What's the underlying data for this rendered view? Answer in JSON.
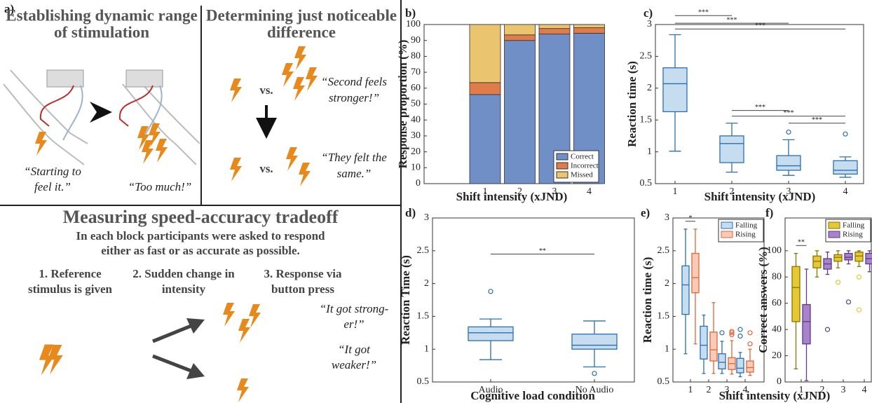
{
  "panel_a": {
    "label": "a)",
    "range_title": [
      "Establishing dynamic range",
      "of stimulation"
    ],
    "range_quotes": [
      [
        "“Starting to",
        "feel it.”"
      ],
      [
        "“Too much!”"
      ]
    ],
    "jnd_title": [
      "Determining just noticeable",
      "difference"
    ],
    "vs": [
      "vs.",
      "vs."
    ],
    "jnd_quotes": [
      [
        "“Second feels",
        "stronger!”"
      ],
      [
        "“They felt the",
        "same.”"
      ]
    ],
    "tradeoff_title": "Measuring speed-accuracy tradeoff",
    "tradeoff_subtitle": [
      "In each block participants were asked to respond",
      "either as fast or as accurate as possible."
    ],
    "steps": [
      [
        "1. Reference",
        "stimulus is given"
      ],
      [
        "2. Sudden change in",
        "intensity"
      ],
      [
        "3. Response via",
        "button press"
      ]
    ],
    "responses": [
      [
        "“It got strong-",
        "er!”"
      ],
      [
        "“It got",
        "weaker!”"
      ]
    ]
  },
  "chart_data": [
    {
      "type": "bar",
      "stacked": true,
      "panel_label": "b)",
      "xlabel": "Shift intensity (xJND)",
      "ylabel": "Response proportion (%)",
      "categories": [
        "1",
        "2",
        "3",
        "4"
      ],
      "series": [
        {
          "name": "Correct",
          "color": "#6f8fc6",
          "values": [
            56,
            90,
            94,
            94.5
          ]
        },
        {
          "name": "Incorrect",
          "color": "#e07b4a",
          "values": [
            7.5,
            3.5,
            3.5,
            3.5
          ]
        },
        {
          "name": "Missed",
          "color": "#ebc46f",
          "values": [
            36.5,
            6.5,
            2.5,
            2
          ]
        }
      ],
      "ylim": [
        0,
        100
      ],
      "yticks": [
        0,
        10,
        20,
        30,
        40,
        50,
        60,
        70,
        80,
        90,
        100
      ],
      "legend": "bottom-right"
    },
    {
      "type": "box",
      "panel_label": "c)",
      "xlabel": "Shift intensity (xJND)",
      "ylabel": "Reaction time (s)",
      "categories": [
        "1",
        "2",
        "3",
        "4"
      ],
      "series": [
        {
          "color": "#c6ddf0",
          "stroke": "#2b6fb2",
          "boxes": [
            {
              "whisker_low": 1.01,
              "q1": 1.63,
              "median": 2.07,
              "q3": 2.32,
              "whisker_high": 2.84,
              "outliers": []
            },
            {
              "whisker_low": 0.68,
              "q1": 0.83,
              "median": 1.13,
              "q3": 1.25,
              "whisker_high": 1.45,
              "outliers": []
            },
            {
              "whisker_low": 0.63,
              "q1": 0.71,
              "median": 0.78,
              "q3": 0.94,
              "whisker_high": 1.19,
              "outliers": [
                1.31
              ]
            },
            {
              "whisker_low": 0.6,
              "q1": 0.65,
              "median": 0.71,
              "q3": 0.86,
              "whisker_high": 0.92,
              "outliers": [
                1.28
              ]
            }
          ]
        }
      ],
      "significance": [
        {
          "groups": [
            0,
            1
          ],
          "y": 3.14,
          "label": "***"
        },
        {
          "groups": [
            0,
            2
          ],
          "y": 3.02,
          "label": "***"
        },
        {
          "groups": [
            0,
            3
          ],
          "y": 2.93,
          "label": "***"
        },
        {
          "groups": [
            1,
            2
          ],
          "y": 1.65,
          "label": "***"
        },
        {
          "groups": [
            1,
            3
          ],
          "y": 1.56,
          "label": "***"
        },
        {
          "groups": [
            2,
            3
          ],
          "y": 1.45,
          "label": "***"
        }
      ],
      "ylim": [
        0.5,
        3
      ],
      "yticks": [
        0.5,
        1,
        1.5,
        2,
        2.5,
        3
      ]
    },
    {
      "type": "box",
      "panel_label": "d)",
      "xlabel": "Cognitive load condition",
      "ylabel": "Reaction Time (s)",
      "categories": [
        "Audio",
        "No Audio"
      ],
      "series": [
        {
          "color": "#c6ddf0",
          "stroke": "#2b6fb2",
          "boxes": [
            {
              "whisker_low": 0.84,
              "q1": 1.13,
              "median": 1.25,
              "q3": 1.34,
              "whisker_high": 1.46,
              "outliers": [
                1.88
              ]
            },
            {
              "whisker_low": 0.73,
              "q1": 1.0,
              "median": 1.06,
              "q3": 1.23,
              "whisker_high": 1.43,
              "outliers": [
                0.63
              ]
            }
          ]
        }
      ],
      "significance": [
        {
          "groups": [
            0,
            1
          ],
          "y": 2.45,
          "label": "**"
        }
      ],
      "ylim": [
        0.5,
        3
      ],
      "yticks": [
        0.5,
        1,
        1.5,
        2,
        2.5,
        3
      ]
    },
    {
      "type": "box",
      "panel_label": "e)",
      "xlabel": "Shift intensity (xJND)",
      "ylabel": "Reaction time (s)",
      "categories": [
        "1",
        "2",
        "3",
        "4"
      ],
      "series": [
        {
          "name": "Falling",
          "color": "#c6ddf0",
          "stroke": "#2b6fb2",
          "boxes": [
            {
              "whisker_low": 0.93,
              "q1": 1.53,
              "median": 1.98,
              "q3": 2.27,
              "whisker_high": 2.83,
              "outliers": []
            },
            {
              "whisker_low": 0.63,
              "q1": 0.85,
              "median": 1.06,
              "q3": 1.35,
              "whisker_high": 1.52,
              "outliers": []
            },
            {
              "whisker_low": 0.63,
              "q1": 0.7,
              "median": 0.8,
              "q3": 0.93,
              "whisker_high": 1.12,
              "outliers": [
                1.25
              ]
            },
            {
              "whisker_low": 0.58,
              "q1": 0.64,
              "median": 0.71,
              "q3": 0.86,
              "whisker_high": 0.95,
              "outliers": [
                1.2,
                1.3
              ]
            }
          ]
        },
        {
          "name": "Rising",
          "color": "#f8cbb8",
          "stroke": "#e0663a",
          "boxes": [
            {
              "whisker_low": 1.08,
              "q1": 1.86,
              "median": 2.09,
              "q3": 2.46,
              "whisker_high": 2.83,
              "outliers": []
            },
            {
              "whisker_low": 0.63,
              "q1": 0.82,
              "median": 0.99,
              "q3": 1.26,
              "whisker_high": 1.71,
              "outliers": []
            },
            {
              "whisker_low": 0.62,
              "q1": 0.69,
              "median": 0.78,
              "q3": 0.87,
              "whisker_high": 1.13,
              "outliers": [
                1.22,
                1.25,
                1.27
              ]
            },
            {
              "whisker_low": 0.6,
              "q1": 0.65,
              "median": 0.72,
              "q3": 0.82,
              "whisker_high": 1.0,
              "outliers": [
                1.08,
                1.25
              ]
            }
          ]
        }
      ],
      "significance": [
        {
          "groups": [
            0,
            0
          ],
          "y": 2.95,
          "label": "*"
        }
      ],
      "ylim": [
        0.5,
        3
      ],
      "yticks": [
        0.5,
        1,
        1.5,
        2,
        2.5,
        3
      ],
      "legend": "top-right"
    },
    {
      "type": "box",
      "panel_label": "f)",
      "ylabel": "Correct answers (%)",
      "categories": [
        "1",
        "2",
        "3",
        "4"
      ],
      "series": [
        {
          "name": "Falling",
          "color": "#e6c832",
          "stroke": "#8a7400",
          "boxes": [
            {
              "whisker_low": 10,
              "q1": 46,
              "median": 72,
              "q3": 88,
              "whisker_high": 98,
              "outliers": []
            },
            {
              "whisker_low": 80,
              "q1": 87,
              "median": 92,
              "q3": 96,
              "whisker_high": 100,
              "outliers": []
            },
            {
              "whisker_low": 87,
              "q1": 92,
              "median": 95,
              "q3": 97,
              "whisker_high": 100,
              "outliers": [
                76
              ]
            },
            {
              "whisker_low": 88,
              "q1": 92,
              "median": 96,
              "q3": 99,
              "whisker_high": 100,
              "outliers": [
                80,
                55
              ]
            }
          ]
        },
        {
          "name": "Rising",
          "color": "#a783c9",
          "stroke": "#5e3a85",
          "boxes": [
            {
              "whisker_low": 1,
              "q1": 29,
              "median": 46,
              "q3": 59,
              "whisker_high": 86,
              "outliers": []
            },
            {
              "whisker_low": 82,
              "q1": 86,
              "median": 90,
              "q3": 94,
              "whisker_high": 99,
              "outliers": [
                40
              ]
            },
            {
              "whisker_low": 90,
              "q1": 93,
              "median": 95,
              "q3": 98,
              "whisker_high": 100,
              "outliers": [
                61
              ]
            },
            {
              "whisker_low": 84,
              "q1": 90,
              "median": 94,
              "q3": 98,
              "whisker_high": 100,
              "outliers": []
            }
          ]
        }
      ],
      "significance": [
        {
          "groups": [
            0,
            0
          ],
          "y": 104,
          "label": "**"
        }
      ],
      "ylim": [
        0,
        125
      ],
      "yticks": [
        0,
        20,
        40,
        60,
        80,
        100
      ],
      "legend": "top-right"
    }
  ]
}
